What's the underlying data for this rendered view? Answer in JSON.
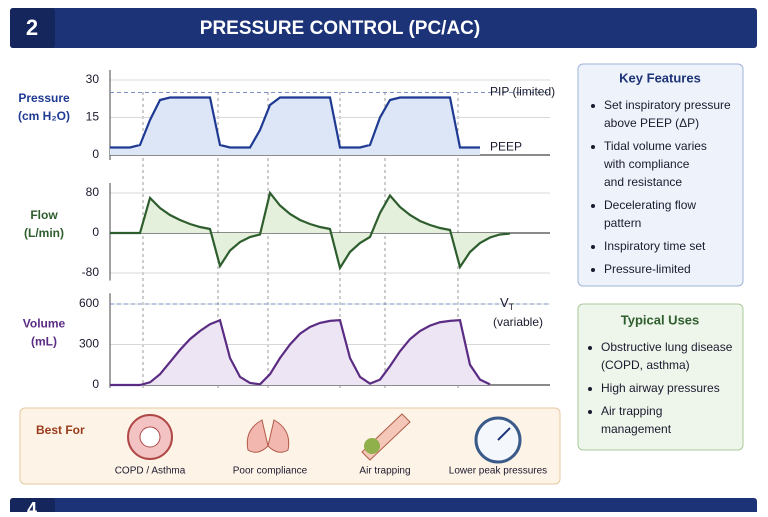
{
  "header": {
    "number": "2",
    "title": "PRESSURE CONTROL (PC/AC)"
  },
  "chart_data": [
    {
      "type": "line",
      "ylabel": [
        "Pressure",
        "(cm H₂O)"
      ],
      "color": "#1f3a93",
      "fill": "#dce6f6",
      "categories": [
        null,
        null,
        null,
        null,
        null,
        null,
        null,
        null,
        null,
        null,
        null,
        null,
        null,
        null,
        null,
        null,
        null,
        null,
        null,
        null,
        null,
        null,
        null,
        null,
        null,
        null,
        null,
        null,
        null,
        null,
        null,
        null,
        null,
        null,
        null,
        null,
        null,
        null
      ],
      "values": [
        3,
        3,
        3,
        4,
        14,
        22,
        23,
        23,
        23,
        23,
        23,
        4,
        3,
        3,
        3,
        10,
        20,
        23,
        23,
        23,
        23,
        23,
        23,
        3,
        3,
        3,
        4,
        15,
        22,
        23,
        23,
        23,
        23,
        23,
        23,
        3,
        3,
        3
      ],
      "ylim": [
        -2,
        34
      ],
      "yticks": [
        0,
        15,
        30
      ],
      "reference": 25,
      "reference_label": "PIP (limited)",
      "baseline_label": "PEEP"
    },
    {
      "type": "line",
      "ylabel": [
        "Flow",
        "(L/min)"
      ],
      "color": "#2e5e2e",
      "fill": "#e4efdc",
      "categories": [
        null,
        null,
        null,
        null,
        null,
        null,
        null,
        null,
        null,
        null,
        null,
        null,
        null,
        null,
        null,
        null,
        null,
        null,
        null,
        null,
        null,
        null,
        null,
        null,
        null,
        null,
        null,
        null,
        null,
        null,
        null,
        null,
        null,
        null,
        null,
        null,
        null,
        null,
        null,
        null,
        null
      ],
      "values": [
        0,
        0,
        0,
        0,
        70,
        50,
        36,
        26,
        18,
        12,
        8,
        -66,
        -35,
        -18,
        -8,
        -3,
        80,
        55,
        38,
        26,
        18,
        12,
        8,
        -70,
        -38,
        -20,
        -8,
        40,
        75,
        52,
        36,
        24,
        16,
        10,
        6,
        -68,
        -38,
        -20,
        -9,
        -3,
        -1
      ],
      "ylim": [
        -95,
        100
      ],
      "yticks": [
        -80,
        0,
        80
      ]
    },
    {
      "type": "line",
      "ylabel": [
        "Volume",
        "(mL)"
      ],
      "color": "#5b2c83",
      "fill": "#eee5f4",
      "categories": [
        null,
        null,
        null,
        null,
        null,
        null,
        null,
        null,
        null,
        null,
        null,
        null,
        null,
        null,
        null,
        null,
        null,
        null,
        null,
        null,
        null,
        null,
        null,
        null,
        null,
        null,
        null,
        null,
        null,
        null,
        null,
        null,
        null,
        null,
        null,
        null,
        null,
        null,
        null
      ],
      "values": [
        0,
        0,
        0,
        0,
        20,
        80,
        170,
        260,
        340,
        400,
        450,
        480,
        200,
        60,
        15,
        5,
        80,
        200,
        300,
        380,
        430,
        460,
        475,
        480,
        200,
        60,
        10,
        40,
        140,
        250,
        340,
        400,
        440,
        465,
        475,
        480,
        150,
        40,
        5
      ],
      "ylim": [
        -20,
        680
      ],
      "yticks": [
        0,
        300,
        600
      ],
      "reference": 600,
      "reference_label": "V",
      "reference_sub": "T",
      "reference_note": "(variable)"
    }
  ],
  "key_features": {
    "title": "Key Features",
    "items": [
      [
        "Set inspiratory pressure",
        "above PEEP (ΔP)"
      ],
      [
        "Tidal volume varies",
        "with compliance",
        "and resistance"
      ],
      [
        "Decelerating flow",
        "pattern"
      ],
      [
        "Inspiratory time set"
      ],
      [
        "Pressure-limited"
      ]
    ]
  },
  "typical_uses": {
    "title": "Typical Uses",
    "items": [
      [
        "Obstructive lung disease",
        "(COPD, asthma)"
      ],
      [
        "High airway pressures"
      ],
      [
        "Air trapping",
        "management"
      ]
    ]
  },
  "best_for": {
    "title": "Best For",
    "items": [
      "COPD / Asthma",
      "Poor compliance",
      "Air trapping",
      "Lower peak pressures"
    ]
  },
  "next_header": {
    "number": "4"
  }
}
